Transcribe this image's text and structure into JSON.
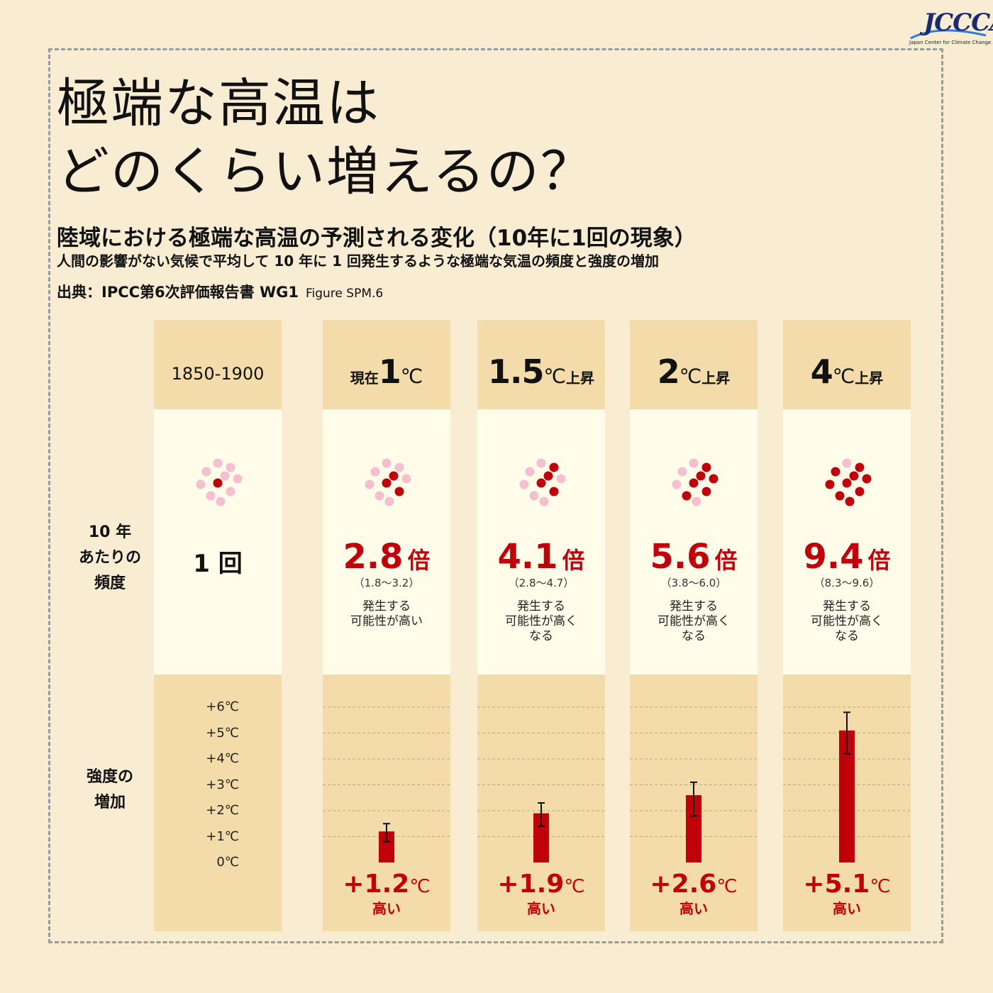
{
  "logo": {
    "text": "JCCCA",
    "subtext": "Japan Center for Climate Change Actions"
  },
  "title": {
    "line1": "極端な高温は",
    "line2": "どのくらい増えるの？"
  },
  "subtitle": "陸域における極端な高温の予測される変化（10年に1回の現象）",
  "description": "人間の影響がない気候で平均して 10 年に 1 回発生するような極端な気温の頻度と強度の増加",
  "source": {
    "label": "出典：IPCC第6次評価報告書 WG1",
    "figure": "Figure SPM.6"
  },
  "row_labels": {
    "frequency": [
      "10 年",
      "あたりの",
      "頻度"
    ],
    "intensity": [
      "強度の",
      "増加"
    ]
  },
  "y_ticks": [
    "+6℃",
    "+5℃",
    "+4℃",
    "+3℃",
    "+2℃",
    "+1℃",
    "0℃"
  ],
  "colors": {
    "dark_dot": "#c0000a",
    "light_dot": "#f5bfd0",
    "bar": "#c0000a",
    "header": "#f3dca9",
    "panel": "#fffcea"
  },
  "baseline": {
    "period": "1850-1900",
    "frequency": "1 回",
    "dark_dots": 1,
    "total_dots": 10
  },
  "scenarios": [
    {
      "pre": "現在",
      "value": "1",
      "unit": "℃",
      "post": "",
      "frequency": "2.8",
      "mul": "倍",
      "range": "（1.8〜3.2）",
      "note": [
        "発生する",
        "可能性が高い"
      ],
      "increase": "+1.2",
      "inc_unit": "℃",
      "level": "高い",
      "dark_dots": 3
    },
    {
      "pre": "",
      "value": "1.5",
      "unit": "℃",
      "post": "上昇",
      "frequency": "4.1",
      "mul": "倍",
      "range": "（2.8〜4.7）",
      "note": [
        "発生する",
        "可能性が高く",
        "なる"
      ],
      "increase": "+1.9",
      "inc_unit": "℃",
      "level": "高い",
      "dark_dots": 4
    },
    {
      "pre": "",
      "value": "2",
      "unit": "℃",
      "post": "上昇",
      "frequency": "5.6",
      "mul": "倍",
      "range": "（3.8〜6.0）",
      "note": [
        "発生する",
        "可能性が高く",
        "なる"
      ],
      "increase": "+2.6",
      "inc_unit": "℃",
      "level": "高い",
      "dark_dots": 6
    },
    {
      "pre": "",
      "value": "4",
      "unit": "℃",
      "post": "上昇",
      "frequency": "9.4",
      "mul": "倍",
      "range": "（8.3〜9.6）",
      "note": [
        "発生する",
        "可能性が高く",
        "なる"
      ],
      "increase": "+5.1",
      "inc_unit": "℃",
      "level": "高い",
      "dark_dots": 9
    }
  ],
  "chart_data": {
    "type": "bar",
    "categories": [
      "現在1℃",
      "1.5℃上昇",
      "2℃上昇",
      "4℃上昇"
    ],
    "values": [
      1.2,
      1.9,
      2.6,
      5.1
    ],
    "error_low": [
      0.8,
      1.4,
      1.8,
      4.2
    ],
    "error_high": [
      1.5,
      2.3,
      3.1,
      5.8
    ],
    "ylim": [
      0,
      6
    ],
    "yticks": [
      "+6℃",
      "+5℃",
      "+4℃",
      "+3℃",
      "+2℃",
      "+1℃",
      "0℃"
    ],
    "grid": true
  }
}
